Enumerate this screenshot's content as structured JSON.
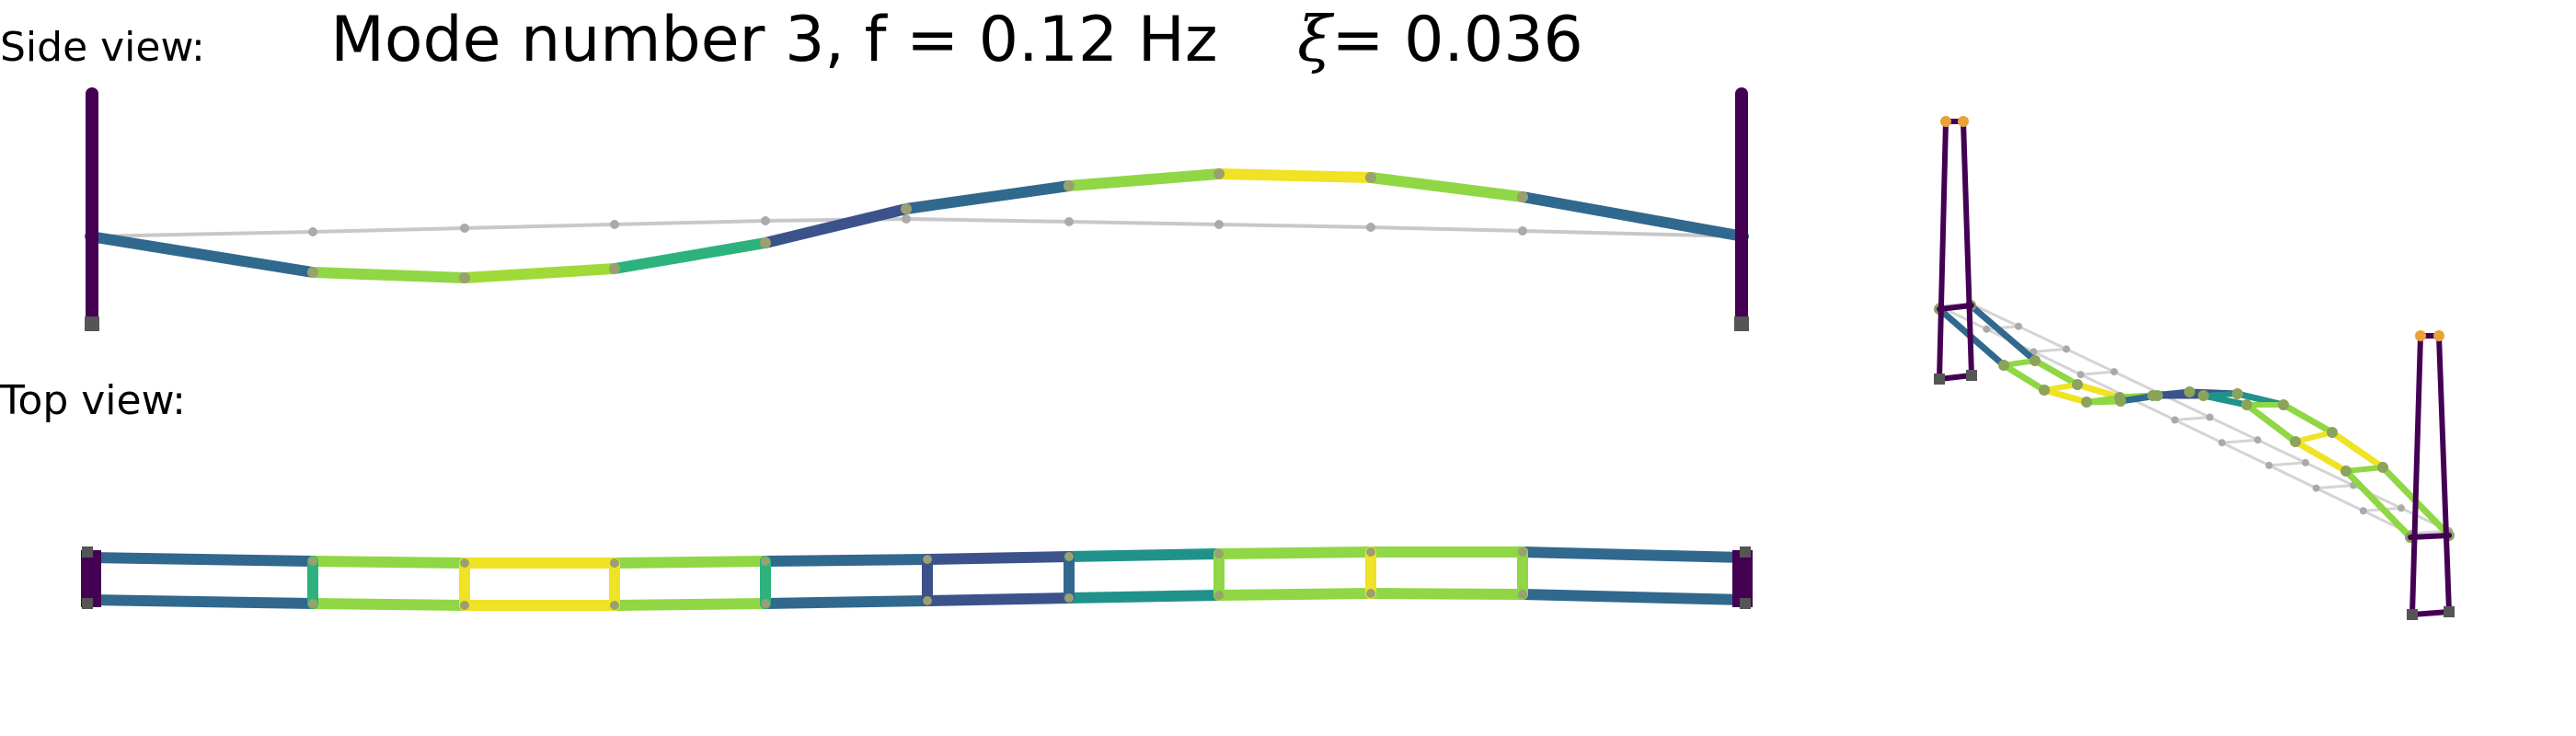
{
  "title": {
    "prefix": "Mode number 3, f = 0.12 Hz",
    "xi_symbol": "ξ",
    "xi_value": "= 0.036"
  },
  "side_label": "Side view:",
  "top_label": "Top view:",
  "colors": {
    "tower": "#440154",
    "reference": "#c8c8c8",
    "node": "#aaaaaa",
    "support": "#555555",
    "tower_node": "#e8a23a"
  }
}
